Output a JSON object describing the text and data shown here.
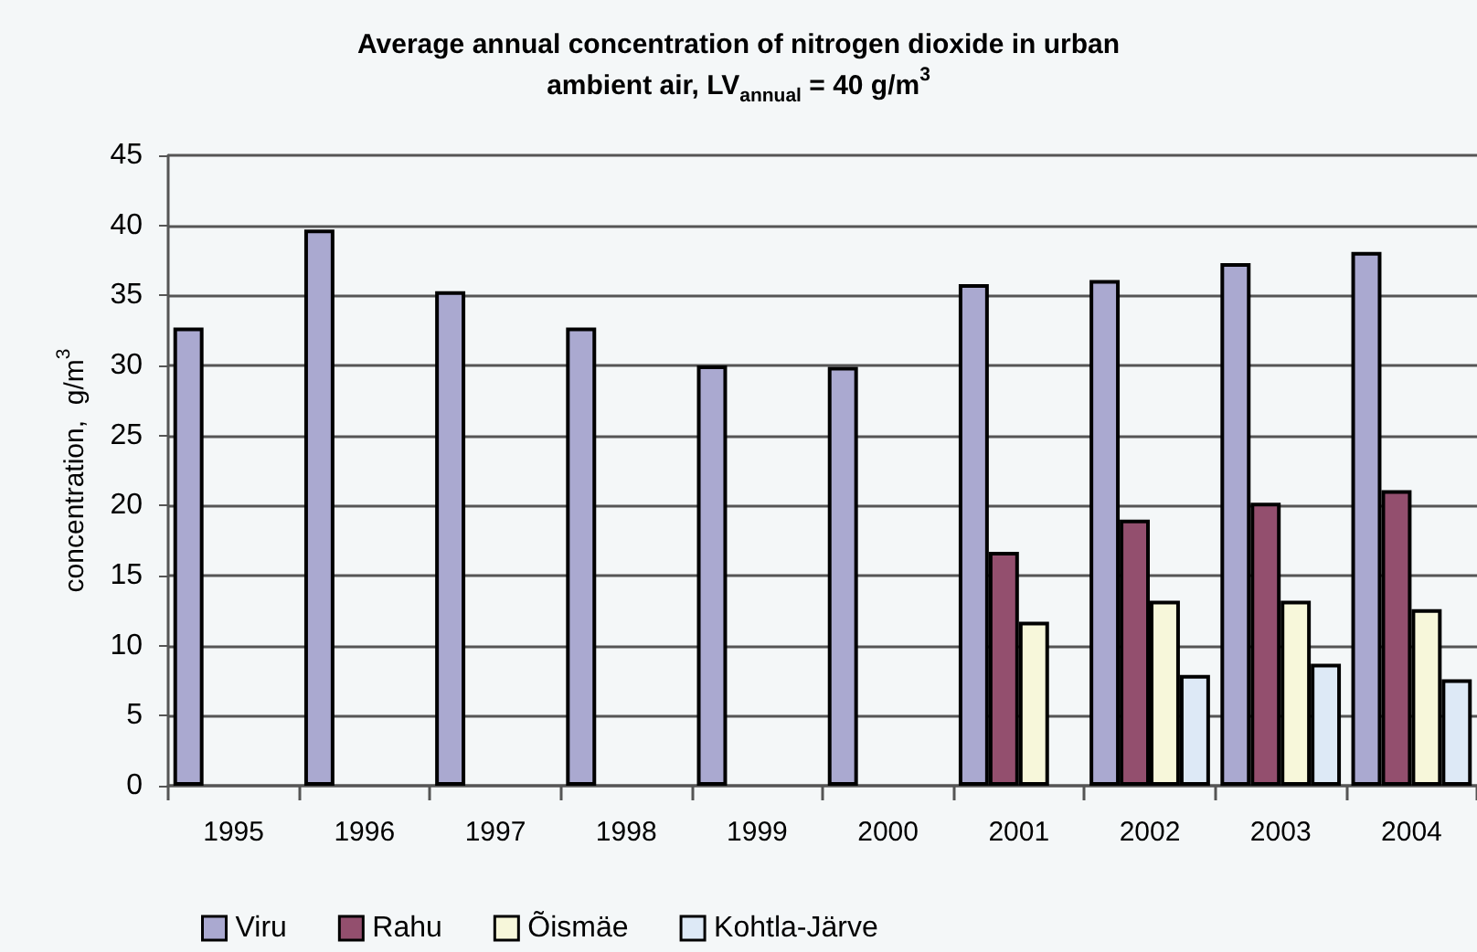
{
  "chart_data": {
    "type": "bar",
    "title": "Average annual concentration of nitrogen dioxide in urban\nambient air, LV$_{annual}$ = 40 g/m$^{3}$",
    "ylabel": "concentration,  g/m$^{3}$",
    "categories": [
      "1995",
      "1996",
      "1997",
      "1998",
      "1999",
      "2000",
      "2001",
      "2002",
      "2003",
      "2004"
    ],
    "series": [
      {
        "name": "Viru",
        "color": "#aaa9d0",
        "values": [
          32.7,
          39.7,
          35.3,
          32.7,
          30.0,
          29.9,
          35.8,
          36.1,
          37.3,
          38.1
        ]
      },
      {
        "name": "Rahu",
        "color": "#934f6e",
        "values": [
          null,
          null,
          null,
          null,
          null,
          null,
          16.7,
          19.0,
          20.2,
          21.1
        ]
      },
      {
        "name": "Õismäe",
        "color": "#f7f7da",
        "values": [
          null,
          null,
          null,
          null,
          null,
          null,
          11.7,
          13.2,
          13.2,
          12.6
        ]
      },
      {
        "name": "Kohtla-Järve",
        "color": "#dde9f6",
        "values": [
          null,
          null,
          null,
          null,
          null,
          null,
          null,
          7.9,
          8.7,
          7.6
        ]
      }
    ],
    "ylim": [
      0,
      45
    ],
    "yticks": [
      0,
      5,
      10,
      15,
      20,
      25,
      30,
      35,
      40,
      45
    ],
    "grid": "y",
    "legend": "bottom left"
  }
}
